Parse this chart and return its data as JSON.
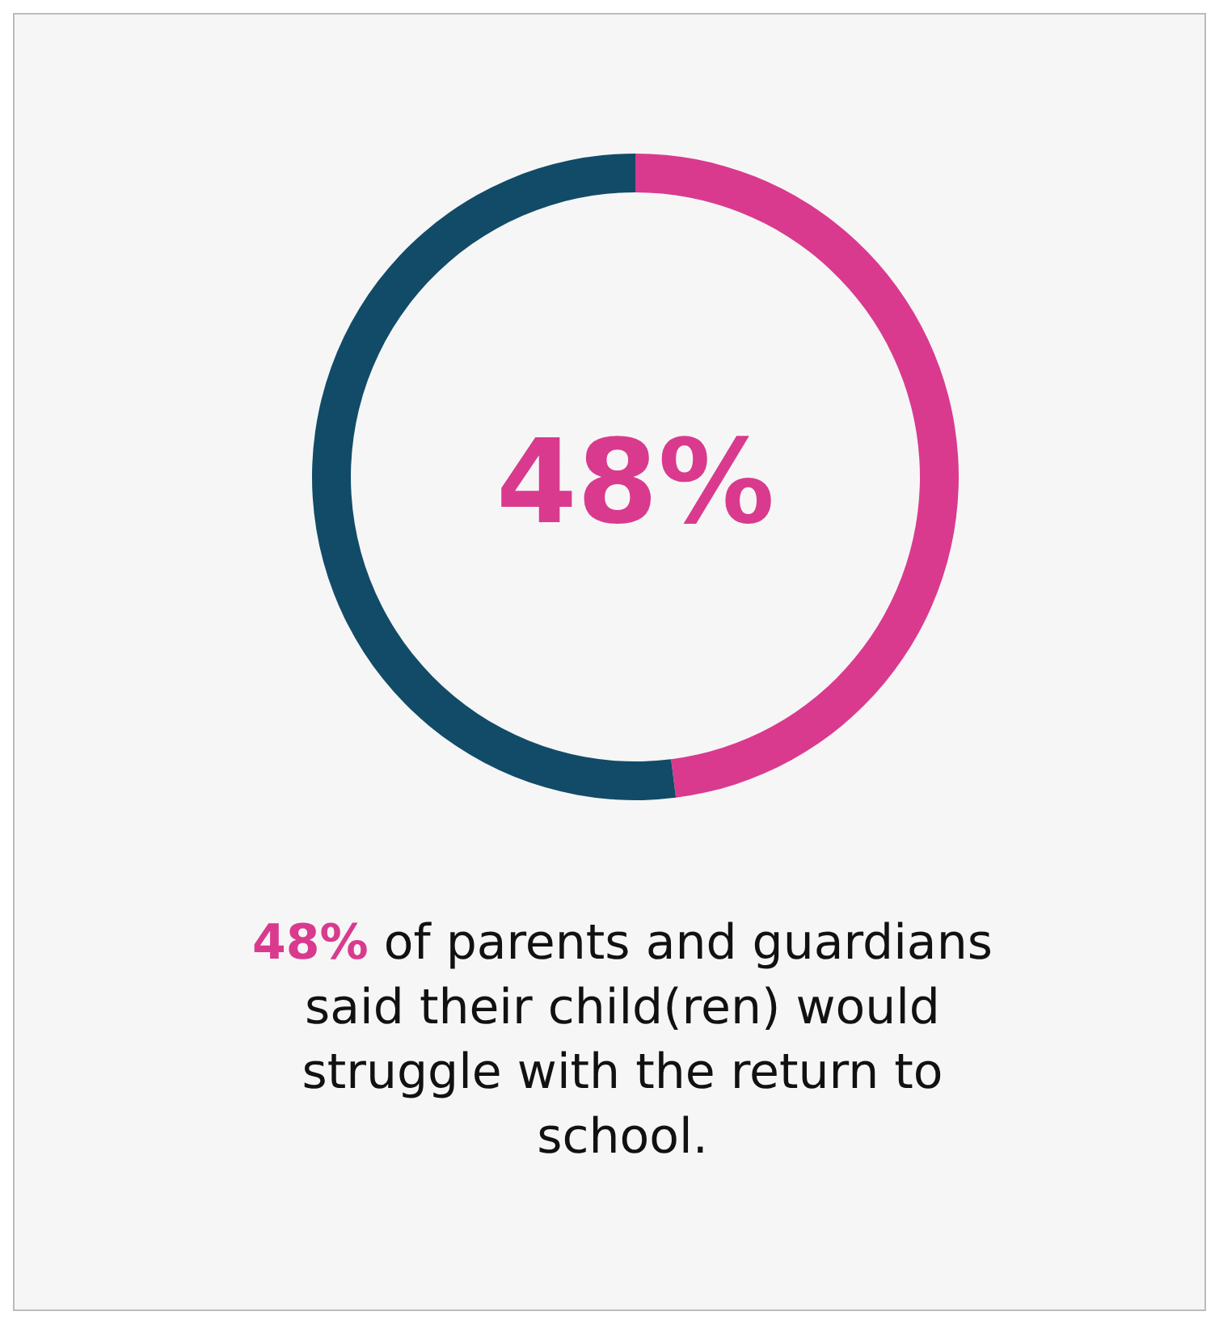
{
  "chart_data": {
    "type": "donut",
    "categories": [
      null,
      null
    ],
    "values": [
      48,
      52
    ],
    "colors": [
      "#d93a8e",
      "#114b68"
    ],
    "annotations": [
      "48%",
      "48% of parents and guardians said their child(ren) would struggle with the return to school."
    ]
  }
}
